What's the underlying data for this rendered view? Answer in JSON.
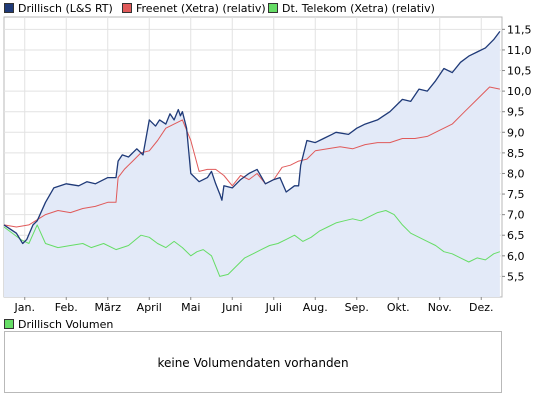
{
  "legend": [
    {
      "label": "Drillisch (L&S RT)",
      "color": "#1f3a78"
    },
    {
      "label": "Freenet (Xetra) (relativ)",
      "color": "#e05a5a"
    },
    {
      "label": "Dt. Telekom (Xetra) (relativ)",
      "color": "#66dd66"
    }
  ],
  "volume": {
    "legend_label": "Drillisch Volumen",
    "legend_color": "#66dd66",
    "message": "keine Volumendaten vorhanden"
  },
  "chart_data": {
    "type": "line",
    "title": "",
    "xlabel": "",
    "ylabel": "",
    "x_ticks": [
      "Jan.",
      "Feb.",
      "März",
      "April",
      "Mai",
      "Juni",
      "Juli",
      "Aug.",
      "Sep.",
      "Okt.",
      "Nov.",
      "Dez."
    ],
    "y_ticks": [
      5.5,
      6.0,
      6.5,
      7.0,
      7.5,
      8.0,
      8.5,
      9.0,
      9.5,
      10.0,
      10.5,
      11.0,
      11.5
    ],
    "y_tick_labels": [
      "5,5",
      "6,0",
      "6,5",
      "7,0",
      "7,5",
      "8,0",
      "8,5",
      "9,0",
      "9,5",
      "10,0",
      "10,5",
      "11,0",
      "11,5"
    ],
    "ylim": [
      5.0,
      11.8
    ],
    "xlim": [
      0,
      12
    ],
    "grid": true,
    "series": [
      {
        "name": "Drillisch (L&S RT)",
        "color": "#1f3a78",
        "fill": "#e3eaf8",
        "x": [
          0.0,
          0.3,
          0.45,
          0.55,
          0.7,
          0.8,
          1.0,
          1.2,
          1.5,
          1.8,
          2.0,
          2.2,
          2.5,
          2.7,
          2.75,
          2.85,
          3.0,
          3.2,
          3.35,
          3.5,
          3.65,
          3.75,
          3.9,
          4.0,
          4.1,
          4.2,
          4.25,
          4.3,
          4.4,
          4.5,
          4.7,
          4.9,
          5.0,
          5.1,
          5.2,
          5.25,
          5.3,
          5.5,
          5.7,
          5.9,
          6.1,
          6.3,
          6.5,
          6.65,
          6.8,
          7.0,
          7.1,
          7.15,
          7.3,
          7.5,
          7.7,
          7.9,
          8.0,
          8.3,
          8.5,
          8.7,
          9.0,
          9.3,
          9.6,
          9.8,
          10.0,
          10.2,
          10.4,
          10.6,
          10.8,
          11.0,
          11.2,
          11.4,
          11.6,
          11.8,
          11.95
        ],
        "y": [
          6.75,
          6.55,
          6.3,
          6.4,
          6.75,
          6.85,
          7.3,
          7.65,
          7.75,
          7.7,
          7.8,
          7.75,
          7.9,
          7.9,
          8.3,
          8.45,
          8.4,
          8.6,
          8.45,
          9.3,
          9.15,
          9.3,
          9.2,
          9.45,
          9.3,
          9.55,
          9.4,
          9.5,
          9.1,
          8.0,
          7.8,
          7.9,
          8.05,
          7.75,
          7.5,
          7.35,
          7.7,
          7.65,
          7.85,
          8.0,
          8.1,
          7.75,
          7.85,
          7.9,
          7.55,
          7.7,
          7.7,
          8.2,
          8.8,
          8.75,
          8.85,
          8.95,
          9.0,
          8.95,
          9.1,
          9.2,
          9.3,
          9.5,
          9.8,
          9.75,
          10.05,
          10.0,
          10.25,
          10.55,
          10.45,
          10.7,
          10.85,
          10.95,
          11.05,
          11.25,
          11.45
        ]
      },
      {
        "name": "Freenet (Xetra) (relativ)",
        "color": "#e05a5a",
        "x": [
          0.0,
          0.3,
          0.6,
          1.0,
          1.3,
          1.6,
          1.9,
          2.2,
          2.5,
          2.7,
          2.75,
          2.9,
          3.1,
          3.3,
          3.5,
          3.7,
          3.9,
          4.1,
          4.3,
          4.5,
          4.7,
          4.9,
          5.1,
          5.3,
          5.5,
          5.7,
          5.9,
          6.1,
          6.3,
          6.5,
          6.7,
          6.9,
          7.1,
          7.3,
          7.5,
          7.8,
          8.1,
          8.4,
          8.7,
          9.0,
          9.3,
          9.6,
          9.9,
          10.2,
          10.5,
          10.8,
          11.1,
          11.4,
          11.7,
          11.95
        ],
        "y": [
          6.75,
          6.7,
          6.75,
          7.0,
          7.1,
          7.05,
          7.15,
          7.2,
          7.3,
          7.3,
          7.9,
          8.1,
          8.3,
          8.5,
          8.55,
          8.8,
          9.1,
          9.2,
          9.3,
          8.8,
          8.05,
          8.1,
          8.1,
          7.95,
          7.7,
          7.95,
          7.85,
          8.0,
          7.75,
          7.85,
          8.15,
          8.2,
          8.3,
          8.35,
          8.55,
          8.6,
          8.65,
          8.6,
          8.7,
          8.75,
          8.75,
          8.85,
          8.85,
          8.9,
          9.05,
          9.2,
          9.5,
          9.8,
          10.1,
          10.05
        ]
      },
      {
        "name": "Dt. Telekom (Xetra) (relativ)",
        "color": "#66dd66",
        "x": [
          0.0,
          0.4,
          0.6,
          0.8,
          1.0,
          1.3,
          1.6,
          1.9,
          2.1,
          2.4,
          2.7,
          3.0,
          3.3,
          3.5,
          3.7,
          3.9,
          4.1,
          4.3,
          4.5,
          4.65,
          4.8,
          5.0,
          5.2,
          5.4,
          5.6,
          5.8,
          6.0,
          6.2,
          6.4,
          6.6,
          6.8,
          7.0,
          7.2,
          7.4,
          7.6,
          7.8,
          8.0,
          8.2,
          8.4,
          8.6,
          8.8,
          9.0,
          9.2,
          9.4,
          9.6,
          9.8,
          10.0,
          10.2,
          10.4,
          10.6,
          10.8,
          11.0,
          11.2,
          11.4,
          11.6,
          11.8,
          11.95
        ],
        "y": [
          6.7,
          6.4,
          6.3,
          6.75,
          6.3,
          6.2,
          6.25,
          6.3,
          6.2,
          6.3,
          6.15,
          6.25,
          6.5,
          6.45,
          6.3,
          6.2,
          6.35,
          6.2,
          6.0,
          6.1,
          6.15,
          6.0,
          5.5,
          5.55,
          5.75,
          5.95,
          6.05,
          6.15,
          6.25,
          6.3,
          6.4,
          6.5,
          6.35,
          6.45,
          6.6,
          6.7,
          6.8,
          6.85,
          6.9,
          6.85,
          6.95,
          7.05,
          7.1,
          7.0,
          6.75,
          6.55,
          6.45,
          6.35,
          6.25,
          6.1,
          6.05,
          5.95,
          5.85,
          5.95,
          5.9,
          6.05,
          6.1
        ]
      }
    ]
  }
}
